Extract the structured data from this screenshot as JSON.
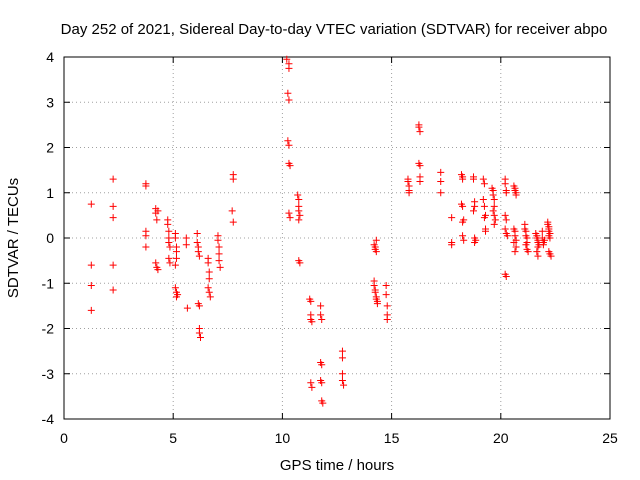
{
  "chart_data": {
    "type": "scatter",
    "title": "Day 252 of 2021, Sidereal Day-to-day VTEC variation (SDTVAR) for receiver abpo",
    "xlabel": "GPS time / hours",
    "ylabel": "SDTVAR / TECUs",
    "xlim": [
      0,
      25
    ],
    "ylim": [
      -4,
      4
    ],
    "xticks": [
      0,
      5,
      10,
      15,
      20,
      25
    ],
    "yticks": [
      -4,
      -3,
      -2,
      -1,
      0,
      1,
      2,
      3,
      4
    ],
    "grid": true,
    "marker": "+",
    "color": "#ff0000",
    "series": [
      {
        "name": "SDTVAR",
        "points": [
          [
            1.25,
            0.75
          ],
          [
            1.25,
            -0.6
          ],
          [
            1.25,
            -1.05
          ],
          [
            1.25,
            -1.6
          ],
          [
            2.25,
            1.3
          ],
          [
            2.25,
            0.7
          ],
          [
            2.25,
            0.45
          ],
          [
            2.25,
            -0.6
          ],
          [
            2.25,
            -1.15
          ],
          [
            3.75,
            1.2
          ],
          [
            3.75,
            1.15
          ],
          [
            3.75,
            0.15
          ],
          [
            3.75,
            0.05
          ],
          [
            3.75,
            -0.2
          ],
          [
            4.2,
            0.65
          ],
          [
            4.2,
            0.55
          ],
          [
            4.25,
            0.4
          ],
          [
            4.2,
            -0.55
          ],
          [
            4.25,
            -0.65
          ],
          [
            4.3,
            -0.7
          ],
          [
            4.3,
            0.6
          ],
          [
            4.75,
            0.4
          ],
          [
            4.75,
            0.3
          ],
          [
            4.8,
            0.15
          ],
          [
            4.8,
            0.0
          ],
          [
            4.8,
            -0.1
          ],
          [
            4.85,
            -0.2
          ],
          [
            4.8,
            -0.45
          ],
          [
            4.85,
            -0.55
          ],
          [
            5.1,
            0.1
          ],
          [
            5.1,
            0.0
          ],
          [
            5.15,
            -0.2
          ],
          [
            5.15,
            -0.3
          ],
          [
            5.15,
            -0.45
          ],
          [
            5.1,
            -0.6
          ],
          [
            5.1,
            -1.1
          ],
          [
            5.15,
            -1.2
          ],
          [
            5.2,
            -1.25
          ],
          [
            5.15,
            -1.3
          ],
          [
            5.6,
            0.0
          ],
          [
            5.6,
            -0.15
          ],
          [
            5.65,
            -1.55
          ],
          [
            6.1,
            0.1
          ],
          [
            6.1,
            -0.1
          ],
          [
            6.15,
            -0.2
          ],
          [
            6.15,
            -0.3
          ],
          [
            6.2,
            -0.4
          ],
          [
            6.15,
            -1.45
          ],
          [
            6.2,
            -1.5
          ],
          [
            6.2,
            -2.0
          ],
          [
            6.2,
            -2.1
          ],
          [
            6.25,
            -2.2
          ],
          [
            6.6,
            -0.45
          ],
          [
            6.6,
            -0.55
          ],
          [
            6.65,
            -0.75
          ],
          [
            6.65,
            -0.9
          ],
          [
            6.6,
            -1.1
          ],
          [
            6.65,
            -1.2
          ],
          [
            6.7,
            -1.3
          ],
          [
            7.05,
            0.05
          ],
          [
            7.05,
            -0.05
          ],
          [
            7.1,
            -0.2
          ],
          [
            7.1,
            -0.35
          ],
          [
            7.1,
            -0.5
          ],
          [
            7.15,
            -0.65
          ],
          [
            7.75,
            1.4
          ],
          [
            7.75,
            1.3
          ],
          [
            7.7,
            0.6
          ],
          [
            7.75,
            0.35
          ],
          [
            10.2,
            3.95
          ],
          [
            10.3,
            3.85
          ],
          [
            10.3,
            3.75
          ],
          [
            10.25,
            3.2
          ],
          [
            10.3,
            3.05
          ],
          [
            10.25,
            2.15
          ],
          [
            10.3,
            2.05
          ],
          [
            10.3,
            1.65
          ],
          [
            10.35,
            1.6
          ],
          [
            10.3,
            0.55
          ],
          [
            10.35,
            0.45
          ],
          [
            10.7,
            0.95
          ],
          [
            10.75,
            0.85
          ],
          [
            10.75,
            0.7
          ],
          [
            10.75,
            0.6
          ],
          [
            10.8,
            0.5
          ],
          [
            10.75,
            0.4
          ],
          [
            10.75,
            -0.5
          ],
          [
            10.8,
            -0.55
          ],
          [
            11.25,
            -1.35
          ],
          [
            11.3,
            -1.4
          ],
          [
            11.3,
            -1.7
          ],
          [
            11.3,
            -1.8
          ],
          [
            11.35,
            -1.85
          ],
          [
            11.3,
            -3.2
          ],
          [
            11.35,
            -3.3
          ],
          [
            11.75,
            -1.5
          ],
          [
            11.75,
            -1.7
          ],
          [
            11.8,
            -1.8
          ],
          [
            11.75,
            -2.75
          ],
          [
            11.8,
            -2.8
          ],
          [
            11.75,
            -3.15
          ],
          [
            11.8,
            -3.2
          ],
          [
            11.8,
            -3.6
          ],
          [
            11.85,
            -3.65
          ],
          [
            12.75,
            -2.5
          ],
          [
            12.75,
            -2.65
          ],
          [
            12.75,
            -3.0
          ],
          [
            12.75,
            -3.15
          ],
          [
            12.8,
            -3.25
          ],
          [
            14.2,
            -0.15
          ],
          [
            14.25,
            -0.2
          ],
          [
            14.25,
            -0.25
          ],
          [
            14.3,
            -0.3
          ],
          [
            14.3,
            -0.05
          ],
          [
            14.2,
            -0.95
          ],
          [
            14.2,
            -1.05
          ],
          [
            14.25,
            -1.15
          ],
          [
            14.25,
            -1.2
          ],
          [
            14.3,
            -1.3
          ],
          [
            14.3,
            -1.35
          ],
          [
            14.35,
            -1.4
          ],
          [
            14.35,
            -1.45
          ],
          [
            14.75,
            -1.05
          ],
          [
            14.75,
            -1.25
          ],
          [
            14.8,
            -1.5
          ],
          [
            14.8,
            -1.7
          ],
          [
            14.8,
            -1.8
          ],
          [
            15.75,
            1.3
          ],
          [
            15.75,
            1.25
          ],
          [
            15.8,
            1.15
          ],
          [
            15.8,
            1.05
          ],
          [
            15.8,
            1.0
          ],
          [
            16.25,
            2.5
          ],
          [
            16.25,
            2.45
          ],
          [
            16.3,
            2.35
          ],
          [
            16.25,
            1.65
          ],
          [
            16.3,
            1.6
          ],
          [
            16.3,
            1.35
          ],
          [
            16.3,
            1.25
          ],
          [
            17.25,
            1.45
          ],
          [
            17.25,
            1.25
          ],
          [
            17.25,
            1.0
          ],
          [
            17.75,
            0.45
          ],
          [
            17.75,
            -0.1
          ],
          [
            17.75,
            -0.15
          ],
          [
            18.2,
            1.4
          ],
          [
            18.25,
            1.35
          ],
          [
            18.25,
            1.3
          ],
          [
            18.2,
            0.75
          ],
          [
            18.25,
            0.7
          ],
          [
            18.3,
            0.4
          ],
          [
            18.25,
            0.35
          ],
          [
            18.25,
            0.05
          ],
          [
            18.3,
            -0.05
          ],
          [
            18.75,
            1.35
          ],
          [
            18.75,
            1.3
          ],
          [
            18.8,
            0.8
          ],
          [
            18.8,
            0.7
          ],
          [
            18.75,
            0.6
          ],
          [
            18.8,
            0.0
          ],
          [
            18.85,
            -0.05
          ],
          [
            18.8,
            -0.1
          ],
          [
            19.2,
            1.3
          ],
          [
            19.25,
            1.2
          ],
          [
            19.2,
            0.85
          ],
          [
            19.25,
            0.7
          ],
          [
            19.3,
            0.5
          ],
          [
            19.25,
            0.45
          ],
          [
            19.3,
            0.2
          ],
          [
            19.3,
            0.15
          ],
          [
            19.6,
            1.1
          ],
          [
            19.65,
            1.05
          ],
          [
            19.65,
            0.95
          ],
          [
            19.7,
            0.85
          ],
          [
            19.7,
            0.7
          ],
          [
            19.65,
            0.6
          ],
          [
            19.7,
            0.5
          ],
          [
            19.75,
            0.4
          ],
          [
            19.7,
            0.3
          ],
          [
            20.2,
            1.3
          ],
          [
            20.2,
            1.2
          ],
          [
            20.25,
            1.05
          ],
          [
            20.25,
            1.0
          ],
          [
            20.2,
            0.5
          ],
          [
            20.25,
            0.4
          ],
          [
            20.2,
            0.2
          ],
          [
            20.25,
            0.1
          ],
          [
            20.3,
            0.05
          ],
          [
            20.2,
            -0.8
          ],
          [
            20.25,
            -0.85
          ],
          [
            20.6,
            1.15
          ],
          [
            20.65,
            1.1
          ],
          [
            20.65,
            1.05
          ],
          [
            20.7,
            1.0
          ],
          [
            20.7,
            0.95
          ],
          [
            20.6,
            0.2
          ],
          [
            20.65,
            0.15
          ],
          [
            20.65,
            0.05
          ],
          [
            20.7,
            -0.05
          ],
          [
            20.6,
            -0.1
          ],
          [
            20.7,
            -0.2
          ],
          [
            20.65,
            -0.3
          ],
          [
            21.1,
            0.3
          ],
          [
            21.1,
            0.2
          ],
          [
            21.15,
            0.15
          ],
          [
            21.15,
            0.05
          ],
          [
            21.2,
            0.0
          ],
          [
            21.2,
            -0.1
          ],
          [
            21.15,
            -0.15
          ],
          [
            21.2,
            -0.25
          ],
          [
            21.25,
            -0.3
          ],
          [
            21.6,
            0.1
          ],
          [
            21.65,
            0.05
          ],
          [
            21.65,
            0.0
          ],
          [
            21.7,
            -0.05
          ],
          [
            21.7,
            -0.1
          ],
          [
            21.75,
            -0.15
          ],
          [
            21.7,
            -0.2
          ],
          [
            21.65,
            -0.3
          ],
          [
            21.7,
            -0.4
          ],
          [
            21.9,
            0.15
          ],
          [
            21.9,
            0.0
          ],
          [
            21.95,
            -0.1
          ],
          [
            21.95,
            -0.15
          ],
          [
            22.0,
            -0.05
          ],
          [
            22.15,
            0.35
          ],
          [
            22.15,
            0.3
          ],
          [
            22.2,
            0.25
          ],
          [
            22.2,
            0.2
          ],
          [
            22.2,
            0.15
          ],
          [
            22.25,
            0.1
          ],
          [
            22.2,
            0.05
          ],
          [
            22.25,
            0.0
          ],
          [
            22.2,
            -0.3
          ],
          [
            22.25,
            -0.35
          ],
          [
            22.3,
            -0.4
          ]
        ]
      }
    ]
  }
}
